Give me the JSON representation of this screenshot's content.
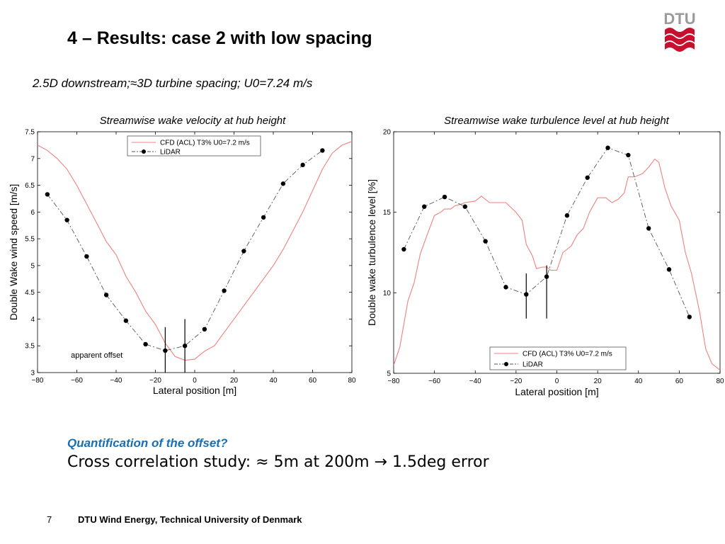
{
  "slide": {
    "title": "4 – Results: case 2 with low spacing",
    "subtitle": "2.5D downstream;≈3D turbine spacing; U0=7.24 m/s",
    "question": "Quantification of the offset?",
    "statement": "Cross correlation study: ≈ 5m at 200m → 1.5deg error",
    "page_number": "7",
    "footer": "DTU Wind Energy, Technical University of Denmark",
    "logo_text": "DTU",
    "logo_color": "#c8102e"
  },
  "chart_data": [
    {
      "type": "line",
      "title": "Streamwise wake velocity at hub height",
      "xlabel": "Lateral position [m]",
      "ylabel": "Double Wake wind speed [m/s]",
      "xlim": [
        -80,
        80
      ],
      "ylim": [
        3,
        7.5
      ],
      "xticks": [
        -80,
        -60,
        -40,
        -20,
        0,
        20,
        40,
        60,
        80
      ],
      "yticks": [
        3,
        3.5,
        4,
        4.5,
        5,
        5.5,
        6,
        6.5,
        7,
        7.5
      ],
      "xtick_labels": [
        "−80",
        "−60",
        "−40",
        "−20",
        "0",
        "20",
        "40",
        "60",
        "80"
      ],
      "ytick_labels": [
        "3",
        "3.5",
        "4",
        "4.5",
        "5",
        "5.5",
        "6",
        "6.5",
        "7",
        "7.5"
      ],
      "grid": false,
      "legend_position": "top-center",
      "series": [
        {
          "name": "CFD (ACL) T3% U0=7.2 m/s",
          "color": "#f08080",
          "style": "solid",
          "x": [
            -80,
            -75,
            -70,
            -65,
            -60,
            -55,
            -50,
            -45,
            -40,
            -35,
            -30,
            -25,
            -20,
            -15,
            -10,
            -5,
            0,
            5,
            10,
            15,
            20,
            25,
            30,
            35,
            40,
            45,
            50,
            55,
            60,
            65,
            70,
            75,
            80
          ],
          "y": [
            7.25,
            7.15,
            7.0,
            6.8,
            6.5,
            6.15,
            5.8,
            5.45,
            5.2,
            4.8,
            4.5,
            4.15,
            3.9,
            3.55,
            3.3,
            3.23,
            3.25,
            3.4,
            3.5,
            3.75,
            4.0,
            4.25,
            4.5,
            4.75,
            5.0,
            5.3,
            5.65,
            6.0,
            6.4,
            6.8,
            7.1,
            7.25,
            7.32
          ]
        },
        {
          "name": "LiDAR",
          "color": "#555555",
          "style": "dash-dot",
          "marker": "circle",
          "x": [
            -75,
            -65,
            -55,
            -45,
            -35,
            -25,
            -15,
            -5,
            5,
            15,
            25,
            35,
            45,
            55,
            65
          ],
          "y": [
            6.33,
            5.85,
            5.17,
            4.45,
            3.97,
            3.53,
            3.41,
            3.5,
            3.81,
            4.53,
            5.27,
            5.9,
            6.53,
            6.88,
            7.15
          ]
        }
      ],
      "vertical_lines": [
        {
          "x": -15,
          "y_from": 3.0,
          "y_to": 3.85
        },
        {
          "x": -5,
          "y_from": 3.0,
          "y_to": 4.0
        }
      ],
      "annotation": {
        "text": "apparent offset",
        "x": -63,
        "y": 3.28
      }
    },
    {
      "type": "line",
      "title": "Streamwise wake turbulence level at hub height",
      "xlabel": "Lateral position [m]",
      "ylabel": "Double wake turbulence level [%]",
      "xlim": [
        -80,
        80
      ],
      "ylim": [
        5,
        20
      ],
      "xticks": [
        -80,
        -60,
        -40,
        -20,
        0,
        20,
        40,
        60,
        80
      ],
      "yticks": [
        5,
        10,
        15,
        20
      ],
      "xtick_labels": [
        "−80",
        "−60",
        "−40",
        "−20",
        "0",
        "20",
        "40",
        "60",
        "80"
      ],
      "ytick_labels": [
        "5",
        "10",
        "15",
        "20"
      ],
      "grid": false,
      "legend_position": "bottom-center",
      "series": [
        {
          "name": "CFD (ACL) T3% U0=7.2 m/s",
          "color": "#f08080",
          "style": "solid",
          "x": [
            -80,
            -77,
            -73,
            -70,
            -67,
            -63,
            -60,
            -57,
            -55,
            -52,
            -50,
            -47,
            -45,
            -40,
            -37,
            -33,
            -30,
            -25,
            -20,
            -17,
            -15,
            -12,
            -10,
            -7,
            -5,
            -3,
            0,
            3,
            5,
            7,
            10,
            13,
            16,
            20,
            24,
            27,
            30,
            33,
            35,
            38,
            42,
            45,
            48,
            50,
            53,
            56,
            60,
            63,
            66,
            70,
            73,
            76,
            80
          ],
          "y": [
            5.5,
            6.6,
            9.5,
            10.6,
            12.4,
            13.8,
            14.8,
            15.0,
            15.2,
            15.2,
            15.4,
            15.5,
            15.6,
            15.7,
            16.0,
            15.6,
            15.6,
            15.6,
            15.0,
            14.5,
            13.0,
            12.3,
            11.5,
            11.6,
            11.6,
            11.4,
            11.4,
            12.5,
            12.7,
            12.9,
            13.6,
            14.0,
            15.0,
            15.9,
            15.9,
            15.6,
            15.8,
            16.2,
            17.2,
            17.2,
            17.4,
            17.8,
            18.3,
            18.1,
            16.5,
            15.4,
            14.5,
            12.5,
            11.2,
            8.8,
            6.5,
            5.6,
            5.2
          ]
        },
        {
          "name": "LiDAR",
          "color": "#555555",
          "style": "dash-dot",
          "marker": "circle",
          "x": [
            -75,
            -65,
            -55,
            -45,
            -35,
            -25,
            -15,
            -5,
            5,
            15,
            25,
            35,
            45,
            55,
            65
          ],
          "y": [
            12.7,
            15.35,
            15.95,
            15.35,
            13.2,
            10.35,
            9.9,
            11.0,
            14.8,
            17.15,
            19.0,
            18.55,
            14.0,
            11.45,
            8.5
          ]
        }
      ],
      "vertical_lines": [
        {
          "x": -15,
          "y_from": 8.4,
          "y_to": 11.2
        },
        {
          "x": -5,
          "y_from": 8.4,
          "y_to": 11.7
        }
      ]
    }
  ]
}
